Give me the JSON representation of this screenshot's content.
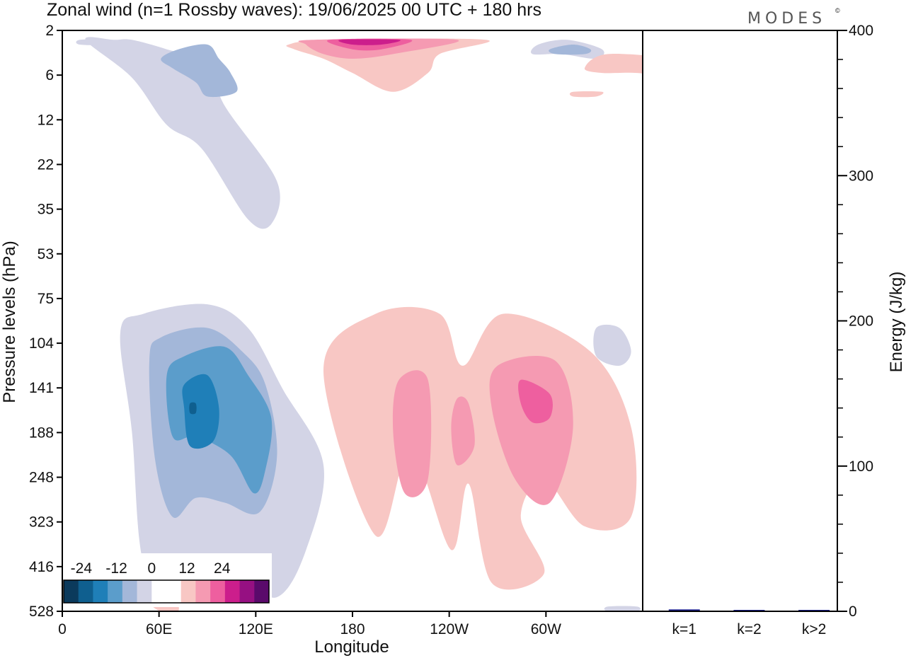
{
  "title": "Zonal wind (n=1 Rossby waves):  19/06/2025  00 UTC  + 180 hrs",
  "brand": "MODES",
  "brand_mark": "©",
  "chart_data": [
    {
      "type": "heatmap",
      "subtype": "filled-contour",
      "xlabel": "Longitude",
      "ylabel": "Pressure levels (hPa)",
      "x_ticks": [
        {
          "lon": 0,
          "label": "0"
        },
        {
          "lon": 60,
          "label": "60E"
        },
        {
          "lon": 120,
          "label": "120E"
        },
        {
          "lon": 180,
          "label": "180"
        },
        {
          "lon": 240,
          "label": "120W"
        },
        {
          "lon": 300,
          "label": "60W"
        }
      ],
      "xlim": [
        0,
        360
      ],
      "y_levels": [
        "2",
        "6",
        "12",
        "22",
        "35",
        "53",
        "75",
        "104",
        "141",
        "188",
        "248",
        "323",
        "416",
        "528"
      ],
      "colorbar": {
        "labels": [
          {
            "value": -24,
            "label": "-24"
          },
          {
            "value": -12,
            "label": "-12"
          },
          {
            "value": 0,
            "label": "0"
          },
          {
            "value": 12,
            "label": "12"
          },
          {
            "value": 24,
            "label": "24"
          }
        ],
        "colors": [
          "#0b3a5c",
          "#0f5f8f",
          "#1f7fb8",
          "#5b9dcb",
          "#a3b7d9",
          "#d3d4e6",
          "#ffffff",
          "#ffffff",
          "#f8c7c4",
          "#f59ab2",
          "#ee5f9f",
          "#cc1e8c",
          "#961082",
          "#5a0a6b"
        ]
      },
      "colors_by_level": {
        "-3": "#d3d4e6",
        "-6": "#a3b7d9",
        "-9": "#5b9dcb",
        "-12": "#1f7fb8",
        "-15": "#0f5f8f",
        "3": "#f8c7c4",
        "6": "#f59ab2",
        "9": "#ee5f9f",
        "12": "#cc1e8c"
      },
      "regions": [
        {
          "level": -3,
          "points": [
            [
              4,
              2
            ],
            [
              9,
              2
            ],
            [
              12,
              2
            ],
            [
              18,
              4
            ],
            [
              25,
              7
            ],
            [
              28,
              16
            ],
            [
              37,
              32
            ],
            [
              36,
              41
            ],
            [
              32,
              40
            ],
            [
              24,
              25
            ],
            [
              18,
              20
            ],
            [
              12,
              10
            ]
          ]
        },
        {
          "level": -6,
          "points": [
            [
              20,
              4
            ],
            [
              25,
              3
            ],
            [
              27,
              6
            ],
            [
              29,
              9
            ],
            [
              30,
              13
            ],
            [
              25,
              14
            ],
            [
              23,
              11
            ],
            [
              19,
              8
            ],
            [
              17,
              6
            ]
          ]
        },
        {
          "level": -3,
          "points": [
            [
              3,
              2
            ],
            [
              8,
              2
            ],
            [
              8,
              3
            ],
            [
              3,
              3
            ]
          ]
        },
        {
          "level": -3,
          "points": [
            [
              82,
              3
            ],
            [
              87,
              2
            ],
            [
              93,
              4
            ],
            [
              92,
              6
            ],
            [
              86,
              5
            ],
            [
              81,
              5
            ]
          ]
        },
        {
          "level": -6,
          "points": [
            [
              84,
              4
            ],
            [
              88,
              3
            ],
            [
              91,
              4
            ],
            [
              90,
              5
            ],
            [
              85,
              5
            ]
          ]
        },
        {
          "level": 3,
          "points": [
            [
              46,
              2
            ],
            [
              73,
              2
            ],
            [
              65,
              5
            ],
            [
              63,
              9
            ],
            [
              57,
              13
            ],
            [
              50,
              9
            ],
            [
              45,
              6
            ],
            [
              40,
              4
            ],
            [
              39,
              3
            ]
          ]
        },
        {
          "level": 6,
          "points": [
            [
              43,
              2
            ],
            [
              68,
              2
            ],
            [
              57,
              5
            ],
            [
              50,
              6
            ],
            [
              45,
              5
            ],
            [
              42,
              3
            ]
          ]
        },
        {
          "level": 9,
          "points": [
            [
              46,
              2
            ],
            [
              60,
              2
            ],
            [
              55,
              4
            ],
            [
              50,
              4
            ]
          ]
        },
        {
          "level": 12,
          "points": [
            [
              48,
              2
            ],
            [
              58,
              2
            ],
            [
              55,
              3
            ],
            [
              50,
              3
            ]
          ]
        },
        {
          "level": 3,
          "points": [
            [
              94,
              5
            ],
            [
              107,
              6
            ],
            [
              111,
              6
            ],
            [
              108,
              10
            ],
            [
              99,
              9
            ],
            [
              93,
              9
            ],
            [
              90,
              8
            ]
          ]
        },
        {
          "level": 3,
          "points": [
            [
              88,
              13
            ],
            [
              93,
              13
            ],
            [
              92,
              14
            ],
            [
              88,
              14
            ]
          ]
        },
        {
          "level": -3,
          "points": [
            [
              14,
              60
            ],
            [
              25,
              58
            ],
            [
              32,
              63
            ],
            [
              38,
              76
            ],
            [
              45,
              92
            ],
            [
              42,
              110
            ],
            [
              37,
              120
            ],
            [
              30,
              116
            ],
            [
              20,
              120
            ],
            [
              14,
              113
            ],
            [
              12,
              85
            ],
            [
              10,
              64
            ]
          ]
        },
        {
          "level": -6,
          "points": [
            [
              17,
              65
            ],
            [
              25,
              63
            ],
            [
              31,
              68
            ],
            [
              35,
              75
            ],
            [
              37,
              90
            ],
            [
              34,
              102
            ],
            [
              28,
              100
            ],
            [
              23,
              99
            ],
            [
              19,
              103
            ],
            [
              16,
              91
            ],
            [
              15,
              70
            ]
          ]
        },
        {
          "level": -9,
          "points": [
            [
              21,
              69
            ],
            [
              28,
              67
            ],
            [
              32,
              73
            ],
            [
              36,
              82
            ],
            [
              35,
              93
            ],
            [
              33,
              98
            ],
            [
              29,
              90
            ],
            [
              23,
              86
            ],
            [
              19,
              86
            ],
            [
              18,
              73
            ]
          ]
        },
        {
          "level": -12,
          "points": [
            [
              21,
              75
            ],
            [
              25,
              73
            ],
            [
              27,
              80
            ],
            [
              26,
              87
            ],
            [
              22,
              88
            ],
            [
              21,
              80
            ]
          ]
        },
        {
          "level": -15,
          "points": [
            [
              22,
              79
            ],
            [
              23,
              79
            ],
            [
              23,
              81
            ],
            [
              22,
              81
            ]
          ]
        },
        {
          "level": -3,
          "points": [
            [
              92,
              63
            ],
            [
              96,
              63
            ],
            [
              98,
              68
            ],
            [
              96,
              71
            ],
            [
              92,
              69
            ]
          ]
        },
        {
          "level": -3,
          "points": [
            [
              94,
              122
            ],
            [
              99,
              122
            ],
            [
              99,
              123
            ],
            [
              94,
              123
            ]
          ]
        },
        {
          "level": 3,
          "points": [
            [
              54,
              60
            ],
            [
              65,
              60
            ],
            [
              69,
              71
            ],
            [
              76,
              60
            ],
            [
              91,
              68
            ],
            [
              98,
              84
            ],
            [
              98,
              103
            ],
            [
              90,
              105
            ],
            [
              83,
              95
            ],
            [
              79,
              103
            ],
            [
              83,
              115
            ],
            [
              74,
              117
            ],
            [
              70,
              96
            ],
            [
              67,
              110
            ],
            [
              60,
              89
            ],
            [
              54,
              107
            ],
            [
              45,
              72
            ]
          ]
        },
        {
          "level": 6,
          "points": [
            [
              58,
              74
            ],
            [
              63,
              74
            ],
            [
              63,
              95
            ],
            [
              59,
              98
            ],
            [
              57,
              85
            ]
          ]
        },
        {
          "level": 6,
          "points": [
            [
              75,
              71
            ],
            [
              85,
              70
            ],
            [
              88,
              84
            ],
            [
              84,
              100
            ],
            [
              78,
              95
            ],
            [
              74,
              80
            ]
          ]
        },
        {
          "level": 6,
          "points": [
            [
              68,
              78
            ],
            [
              70,
              79
            ],
            [
              71,
              88
            ],
            [
              68,
              92
            ],
            [
              67,
              84
            ]
          ]
        },
        {
          "level": 9,
          "points": [
            [
              79,
              74
            ],
            [
              84,
              77
            ],
            [
              84,
              82
            ],
            [
              81,
              83
            ],
            [
              79,
              79
            ]
          ]
        },
        {
          "level": 3,
          "points": [
            [
              15,
              117
            ],
            [
              19,
              119
            ],
            [
              20,
              123
            ],
            [
              17,
              123
            ],
            [
              15,
              121
            ]
          ]
        }
      ]
    },
    {
      "type": "bar",
      "categories": [
        "k=1",
        "k=2",
        "k>2"
      ],
      "values": [
        1.3,
        0.5,
        0.7
      ],
      "ylabel": "Energy (J/kg)",
      "ylim": [
        0,
        400
      ],
      "y_ticks": [
        0,
        100,
        200,
        300,
        400
      ],
      "bar_colors": [
        "#1a1e8c",
        "#1a1e8c",
        "#1a1e8c"
      ]
    }
  ]
}
